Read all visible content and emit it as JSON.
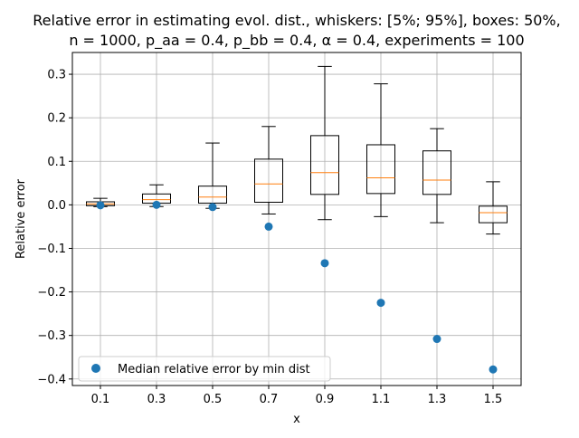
{
  "chart_data": {
    "type": "box",
    "title_line1": "Relative error in estimating evol. dist., whiskers: [5%; 95%], boxes: 50%,",
    "title_line2": "n = 1000, p_aa = 0.4, p_bb = 0.4, α = 0.4, experiments = 100",
    "xlabel": "x",
    "ylabel": "Relative error",
    "categories": [
      "0.1",
      "0.3",
      "0.5",
      "0.7",
      "0.9",
      "1.1",
      "1.3",
      "1.5"
    ],
    "ylim": [
      -0.415,
      0.35
    ],
    "yticks": [
      {
        "value": 0.3,
        "label": "0.3"
      },
      {
        "value": 0.2,
        "label": "0.2"
      },
      {
        "value": 0.1,
        "label": "0.1"
      },
      {
        "value": 0.0,
        "label": "0.0"
      },
      {
        "value": -0.1,
        "label": "−0.1"
      },
      {
        "value": -0.2,
        "label": "−0.2"
      },
      {
        "value": -0.3,
        "label": "−0.3"
      },
      {
        "value": -0.4,
        "label": "−0.4"
      }
    ],
    "grid": true,
    "boxes": [
      {
        "whisker_low": -0.004,
        "q1": -0.002,
        "median": 0.002,
        "q3": 0.007,
        "whisker_high": 0.015
      },
      {
        "whisker_low": -0.004,
        "q1": 0.004,
        "median": 0.012,
        "q3": 0.025,
        "whisker_high": 0.046
      },
      {
        "whisker_low": -0.008,
        "q1": 0.004,
        "median": 0.018,
        "q3": 0.043,
        "whisker_high": 0.142
      },
      {
        "whisker_low": -0.021,
        "q1": 0.006,
        "median": 0.048,
        "q3": 0.105,
        "whisker_high": 0.18
      },
      {
        "whisker_low": -0.034,
        "q1": 0.024,
        "median": 0.074,
        "q3": 0.159,
        "whisker_high": 0.318
      },
      {
        "whisker_low": -0.027,
        "q1": 0.026,
        "median": 0.062,
        "q3": 0.138,
        "whisker_high": 0.278
      },
      {
        "whisker_low": -0.041,
        "q1": 0.024,
        "median": 0.057,
        "q3": 0.124,
        "whisker_high": 0.175
      },
      {
        "whisker_low": -0.067,
        "q1": -0.041,
        "median": -0.018,
        "q3": -0.003,
        "whisker_high": 0.053
      }
    ],
    "series": [
      {
        "name": "Median relative error by min dist",
        "values": [
          -0.001,
          0.0,
          -0.005,
          -0.05,
          -0.134,
          -0.225,
          -0.308,
          -0.378
        ]
      }
    ],
    "legend_position": "lower-left",
    "colors": {
      "box": "#000000",
      "median": "#ff7f0e",
      "points": "#1f77b4",
      "grid": "#b0b0b0"
    }
  }
}
